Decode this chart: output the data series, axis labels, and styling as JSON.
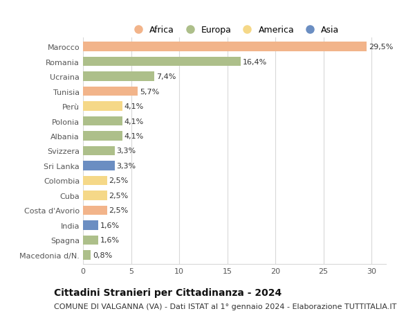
{
  "categories": [
    "Marocco",
    "Romania",
    "Ucraina",
    "Tunisia",
    "Perù",
    "Polonia",
    "Albania",
    "Svizzera",
    "Sri Lanka",
    "Colombia",
    "Cuba",
    "Costa d'Avorio",
    "India",
    "Spagna",
    "Macedonia d/N."
  ],
  "values": [
    29.5,
    16.4,
    7.4,
    5.7,
    4.1,
    4.1,
    4.1,
    3.3,
    3.3,
    2.5,
    2.5,
    2.5,
    1.6,
    1.6,
    0.8
  ],
  "labels": [
    "29,5%",
    "16,4%",
    "7,4%",
    "5,7%",
    "4,1%",
    "4,1%",
    "4,1%",
    "3,3%",
    "3,3%",
    "2,5%",
    "2,5%",
    "2,5%",
    "1,6%",
    "1,6%",
    "0,8%"
  ],
  "continents": [
    "Africa",
    "Europa",
    "Europa",
    "Africa",
    "America",
    "Europa",
    "Europa",
    "Europa",
    "Asia",
    "America",
    "America",
    "Africa",
    "Asia",
    "Europa",
    "Europa"
  ],
  "continent_colors": {
    "Africa": "#F2B48A",
    "Europa": "#ADBF8A",
    "America": "#F5D888",
    "Asia": "#6B8EC2"
  },
  "legend_items": [
    "Africa",
    "Europa",
    "America",
    "Asia"
  ],
  "legend_colors": [
    "#F2B48A",
    "#ADBF8A",
    "#F5D888",
    "#6B8EC2"
  ],
  "title": "Cittadini Stranieri per Cittadinanza - 2024",
  "subtitle": "COMUNE DI VALGANNA (VA) - Dati ISTAT al 1° gennaio 2024 - Elaborazione TUTTITALIA.IT",
  "xlim": [
    0,
    31.5
  ],
  "xticks": [
    0,
    5,
    10,
    15,
    20,
    25,
    30
  ],
  "background_color": "#ffffff",
  "grid_color": "#d8d8d8",
  "bar_height": 0.62,
  "title_fontsize": 10,
  "subtitle_fontsize": 8,
  "label_fontsize": 8,
  "tick_fontsize": 8,
  "legend_fontsize": 9
}
